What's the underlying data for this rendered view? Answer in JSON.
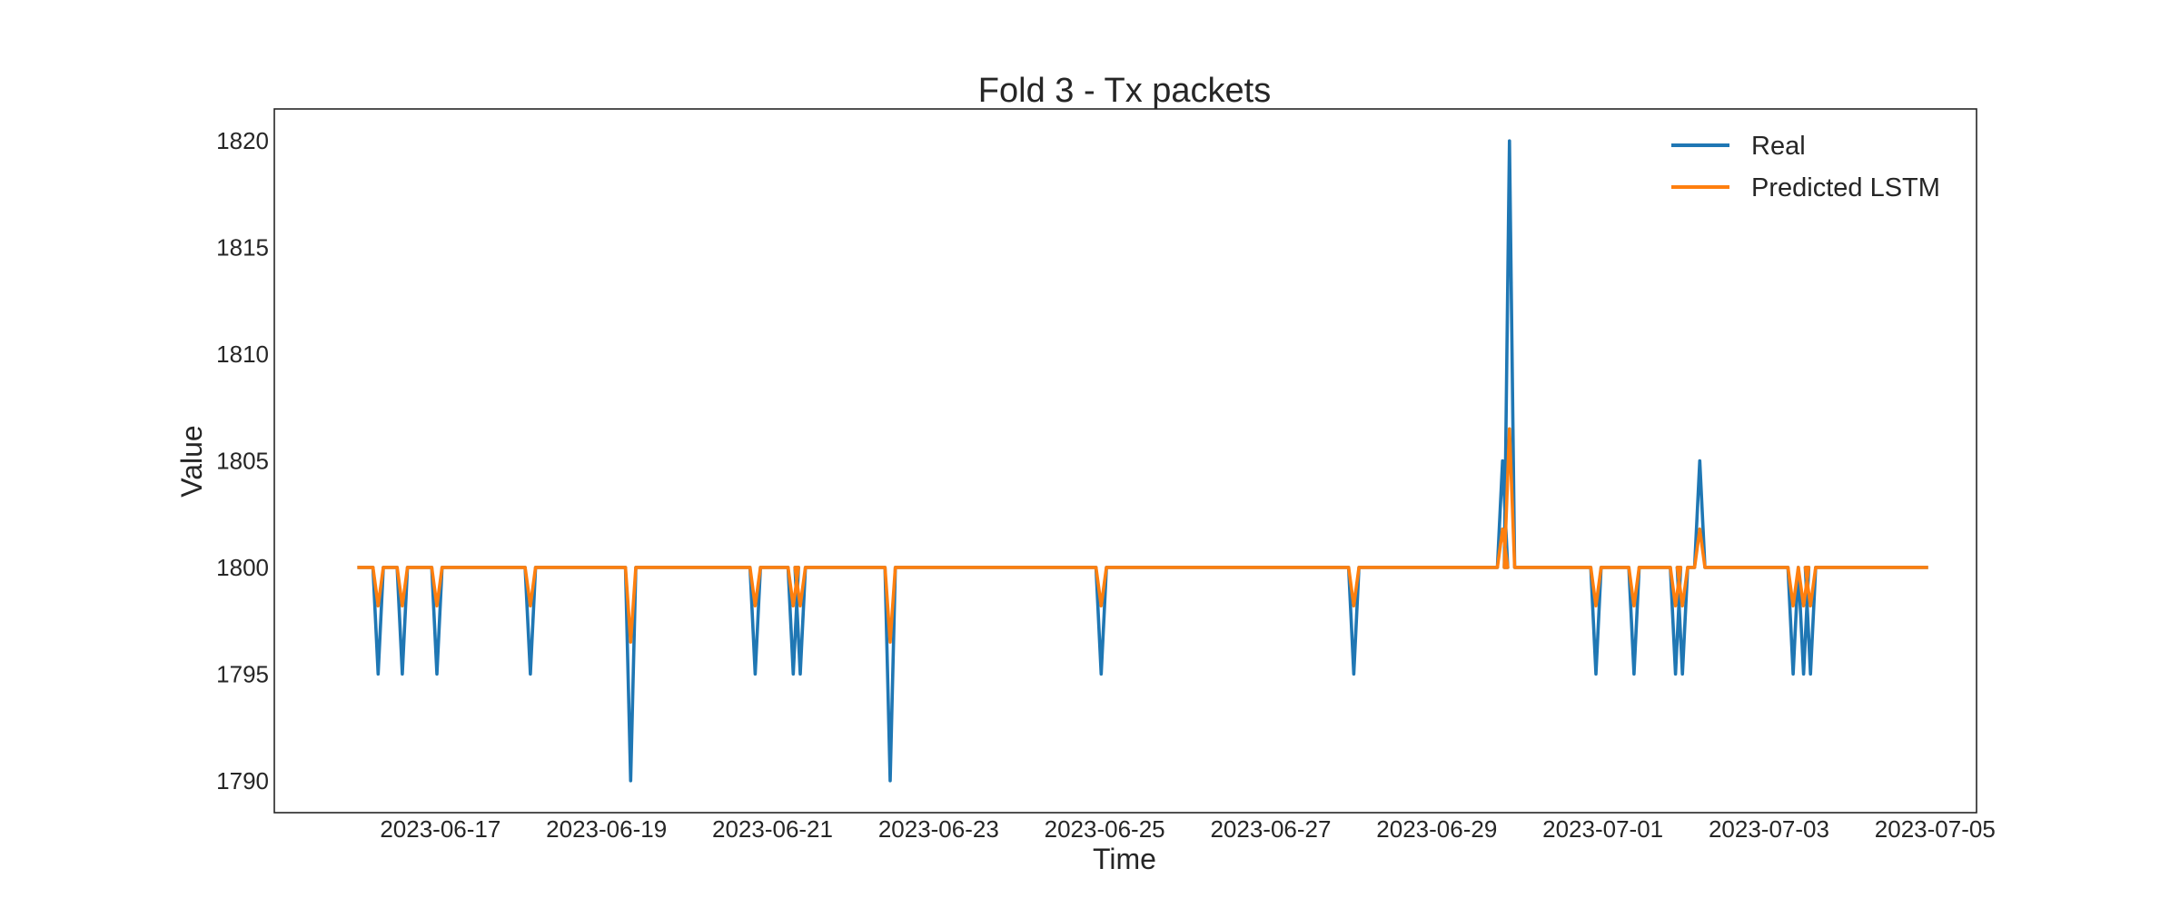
{
  "chart_data": {
    "type": "line",
    "title": "Fold 3 - Tx packets",
    "xlabel": "Time",
    "ylabel": "Value",
    "x_range": [
      "2023-06-15T00:00",
      "2023-07-05T12:00"
    ],
    "ylim": [
      1788.5,
      1821.5
    ],
    "x_ticks": [
      "2023-06-17",
      "2023-06-19",
      "2023-06-21",
      "2023-06-23",
      "2023-06-25",
      "2023-06-27",
      "2023-06-29",
      "2023-07-01",
      "2023-07-03",
      "2023-07-05"
    ],
    "y_ticks": [
      1790,
      1795,
      1800,
      1805,
      1810,
      1815,
      1820
    ],
    "grid": false,
    "legend": "top-right",
    "baseline": 1800,
    "x_start": "2023-06-16T00:00",
    "x_end": "2023-07-04T22:00",
    "series": [
      {
        "name": "Real",
        "color": "#1f77b4",
        "events": [
          {
            "t": "2023-06-16T06:00",
            "v": 1795
          },
          {
            "t": "2023-06-16T13:00",
            "v": 1795
          },
          {
            "t": "2023-06-16T23:00",
            "v": 1795
          },
          {
            "t": "2023-06-18T02:00",
            "v": 1795
          },
          {
            "t": "2023-06-19T07:00",
            "v": 1790
          },
          {
            "t": "2023-06-20T19:00",
            "v": 1795
          },
          {
            "t": "2023-06-21T06:00",
            "v": 1795
          },
          {
            "t": "2023-06-21T08:00",
            "v": 1795
          },
          {
            "t": "2023-06-22T10:00",
            "v": 1790
          },
          {
            "t": "2023-06-24T23:00",
            "v": 1795
          },
          {
            "t": "2023-06-28T00:00",
            "v": 1795
          },
          {
            "t": "2023-06-29T19:00",
            "v": 1805
          },
          {
            "t": "2023-06-29T21:00",
            "v": 1820
          },
          {
            "t": "2023-07-00T22:00",
            "v": 1795
          },
          {
            "t": "2023-07-01T09:00",
            "v": 1795
          },
          {
            "t": "2023-07-01T21:00",
            "v": 1795
          },
          {
            "t": "2023-07-01T23:00",
            "v": 1795
          },
          {
            "t": "2023-07-02T04:00",
            "v": 1805
          },
          {
            "t": "2023-07-03T07:00",
            "v": 1795
          },
          {
            "t": "2023-07-03T10:00",
            "v": 1795
          },
          {
            "t": "2023-07-03T12:00",
            "v": 1795
          }
        ]
      },
      {
        "name": "Predicted LSTM",
        "color": "#ff7f0e",
        "events": [
          {
            "t": "2023-06-16T06:00",
            "v": 1798.2
          },
          {
            "t": "2023-06-16T13:00",
            "v": 1798.2
          },
          {
            "t": "2023-06-16T23:00",
            "v": 1798.2
          },
          {
            "t": "2023-06-18T02:00",
            "v": 1798.2
          },
          {
            "t": "2023-06-19T07:00",
            "v": 1796.5
          },
          {
            "t": "2023-06-20T19:00",
            "v": 1798.2
          },
          {
            "t": "2023-06-21T06:00",
            "v": 1798.2
          },
          {
            "t": "2023-06-21T08:00",
            "v": 1798.2
          },
          {
            "t": "2023-06-22T10:00",
            "v": 1796.5
          },
          {
            "t": "2023-06-24T23:00",
            "v": 1798.2
          },
          {
            "t": "2023-06-28T00:00",
            "v": 1798.2
          },
          {
            "t": "2023-06-29T19:00",
            "v": 1801.8
          },
          {
            "t": "2023-06-29T21:00",
            "v": 1806.5
          },
          {
            "t": "2023-07-00T22:00",
            "v": 1798.2
          },
          {
            "t": "2023-07-01T09:00",
            "v": 1798.2
          },
          {
            "t": "2023-07-01T21:00",
            "v": 1798.2
          },
          {
            "t": "2023-07-01T23:00",
            "v": 1798.2
          },
          {
            "t": "2023-07-02T04:00",
            "v": 1801.8
          },
          {
            "t": "2023-07-03T07:00",
            "v": 1798.2
          },
          {
            "t": "2023-07-03T10:00",
            "v": 1798.2
          },
          {
            "t": "2023-07-03T12:00",
            "v": 1798.2
          }
        ]
      }
    ]
  }
}
